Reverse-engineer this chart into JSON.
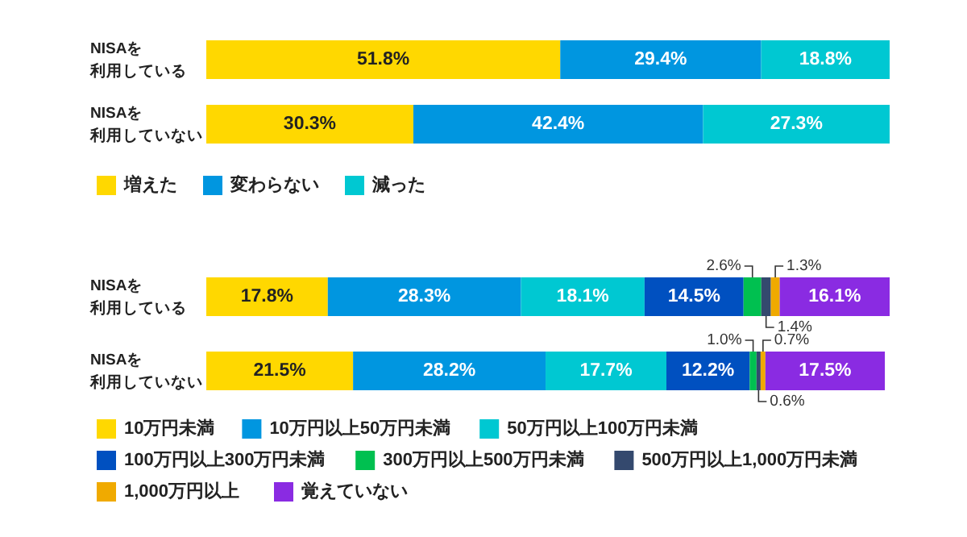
{
  "chart_data": [
    {
      "type": "bar",
      "orientation": "horizontal",
      "stacked": true,
      "categories": [
        "NISAを利用している",
        "NISAを利用していない"
      ],
      "xlim": [
        0,
        100
      ],
      "tick_labels": "y",
      "legend": "bottom",
      "series": [
        {
          "name": "増えた",
          "color": "#ffd800",
          "values": [
            51.8,
            30.3
          ],
          "value_labels": [
            "51.8%",
            "30.3%"
          ]
        },
        {
          "name": "変わらない",
          "color": "#0096e0",
          "values": [
            29.4,
            42.4
          ],
          "value_labels": [
            "29.4%",
            "42.4%"
          ]
        },
        {
          "name": "減った",
          "color": "#00c8d2",
          "values": [
            18.8,
            27.3
          ],
          "value_labels": [
            "18.8%",
            "27.3%"
          ]
        }
      ]
    },
    {
      "type": "bar",
      "orientation": "horizontal",
      "stacked": true,
      "categories": [
        "NISAを利用している",
        "NISAを利用していない"
      ],
      "xlim": [
        0,
        100.1
      ],
      "tick_labels": "y",
      "legend": "bottom",
      "series": [
        {
          "name": "10万円未満",
          "color": "#ffd800",
          "values": [
            17.8,
            21.5
          ],
          "value_labels": [
            "17.8%",
            "21.5%"
          ]
        },
        {
          "name": "10万円以上50万円未満",
          "color": "#0096e0",
          "values": [
            28.3,
            28.2
          ],
          "value_labels": [
            "28.3%",
            "28.2%"
          ]
        },
        {
          "name": "50万円以上100万円未満",
          "color": "#00c8d2",
          "values": [
            18.1,
            17.7
          ],
          "value_labels": [
            "18.1%",
            "17.7%"
          ]
        },
        {
          "name": "100万円以上300万円未満",
          "color": "#0050c0",
          "values": [
            14.5,
            12.2
          ],
          "value_labels": [
            "14.5%",
            "12.2%"
          ]
        },
        {
          "name": "300万円以上500万円未満",
          "color": "#00c050",
          "values": [
            2.6,
            1.0
          ],
          "value_labels": [
            "2.6%",
            "1.0%"
          ]
        },
        {
          "name": "500万円以上1,000万円未満",
          "color": "#34496e",
          "values": [
            1.4,
            0.6
          ],
          "value_labels": [
            "1.4%",
            "0.6%"
          ]
        },
        {
          "name": "1,000万円以上",
          "color": "#f0aa00",
          "values": [
            1.3,
            0.7
          ],
          "value_labels": [
            "1.3%",
            "0.7%"
          ]
        },
        {
          "name": "覚えていない",
          "color": "#8a2be2",
          "values": [
            16.1,
            17.5
          ],
          "value_labels": [
            "16.1%",
            "17.5%"
          ]
        }
      ]
    }
  ]
}
